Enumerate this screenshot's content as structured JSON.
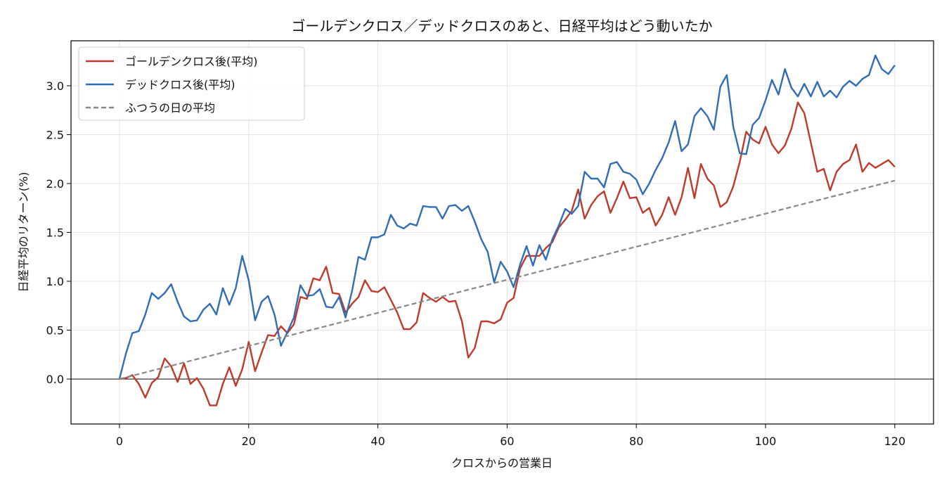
{
  "chart_data": {
    "type": "line",
    "title": "ゴールデンクロス／デッドクロスのあと、日経平均はどう動いたか",
    "xlabel": "クロスからの営業日",
    "ylabel": "日経平均のリターン(%)",
    "xlim": [
      -7.5,
      126
    ],
    "ylim": [
      -0.46,
      3.46
    ],
    "xticks": [
      "0",
      "20",
      "40",
      "60",
      "80",
      "100",
      "120"
    ],
    "yticks": [
      "0.0",
      "0.5",
      "1.0",
      "1.5",
      "2.0",
      "2.5",
      "3.0"
    ],
    "grid": true,
    "legend_position": "top-left",
    "series": [
      {
        "name": "ゴールデンクロス後(平均)",
        "color": "#c0392b",
        "style": "solid",
        "x": [
          0,
          1,
          2,
          3,
          4,
          5,
          6,
          7,
          8,
          9,
          10,
          11,
          12,
          13,
          14,
          15,
          16,
          17,
          18,
          19,
          20,
          21,
          22,
          23,
          24,
          25,
          26,
          27,
          28,
          29,
          30,
          31,
          32,
          33,
          34,
          35,
          36,
          37,
          38,
          39,
          40,
          41,
          42,
          43,
          44,
          45,
          46,
          47,
          48,
          49,
          50,
          51,
          52,
          53,
          54,
          55,
          56,
          57,
          58,
          59,
          60,
          61,
          62,
          63,
          64,
          65,
          66,
          67,
          68,
          69,
          70,
          71,
          72,
          73,
          74,
          75,
          76,
          77,
          78,
          79,
          80,
          81,
          82,
          83,
          84,
          85,
          86,
          87,
          88,
          89,
          90,
          91,
          92,
          93,
          94,
          95,
          96,
          97,
          98,
          99,
          100,
          101,
          102,
          103,
          104,
          105,
          106,
          107,
          108,
          109,
          110,
          111,
          112,
          113,
          114,
          115,
          116,
          117,
          118,
          119,
          120
        ],
        "values": [
          0.0,
          0.01,
          0.04,
          -0.05,
          -0.19,
          -0.04,
          0.02,
          0.21,
          0.13,
          -0.03,
          0.16,
          -0.05,
          0.01,
          -0.1,
          -0.27,
          -0.27,
          -0.05,
          0.12,
          -0.07,
          0.1,
          0.38,
          0.08,
          0.27,
          0.45,
          0.44,
          0.54,
          0.47,
          0.56,
          0.84,
          0.82,
          1.03,
          1.01,
          1.15,
          0.88,
          0.87,
          0.68,
          0.77,
          0.84,
          1.01,
          0.9,
          0.89,
          0.94,
          0.81,
          0.68,
          0.51,
          0.51,
          0.58,
          0.88,
          0.83,
          0.79,
          0.84,
          0.79,
          0.8,
          0.59,
          0.22,
          0.32,
          0.59,
          0.59,
          0.57,
          0.61,
          0.78,
          0.83,
          1.13,
          1.26,
          1.26,
          1.26,
          1.34,
          1.4,
          1.55,
          1.63,
          1.72,
          1.94,
          1.64,
          1.78,
          1.87,
          1.92,
          1.7,
          1.85,
          2.02,
          1.85,
          1.86,
          1.7,
          1.75,
          1.57,
          1.68,
          1.86,
          1.68,
          1.86,
          2.16,
          1.85,
          2.2,
          2.05,
          1.98,
          1.76,
          1.81,
          1.97,
          2.22,
          2.53,
          2.45,
          2.41,
          2.58,
          2.4,
          2.31,
          2.39,
          2.56,
          2.83,
          2.72,
          2.42,
          2.12,
          2.15,
          1.93,
          2.12,
          2.2,
          2.24,
          2.4,
          2.12,
          2.21,
          2.16,
          2.2,
          2.24,
          2.17
        ]
      },
      {
        "name": "デッドクロス後(平均)",
        "color": "#2f6db5",
        "style": "solid",
        "x": [
          0,
          1,
          2,
          3,
          4,
          5,
          6,
          7,
          8,
          9,
          10,
          11,
          12,
          13,
          14,
          15,
          16,
          17,
          18,
          19,
          20,
          21,
          22,
          23,
          24,
          25,
          26,
          27,
          28,
          29,
          30,
          31,
          32,
          33,
          34,
          35,
          36,
          37,
          38,
          39,
          40,
          41,
          42,
          43,
          44,
          45,
          46,
          47,
          48,
          49,
          50,
          51,
          52,
          53,
          54,
          55,
          56,
          57,
          58,
          59,
          60,
          61,
          62,
          63,
          64,
          65,
          66,
          67,
          68,
          69,
          70,
          71,
          72,
          73,
          74,
          75,
          76,
          77,
          78,
          79,
          80,
          81,
          82,
          83,
          84,
          85,
          86,
          87,
          88,
          89,
          90,
          91,
          92,
          93,
          94,
          95,
          96,
          97,
          98,
          99,
          100,
          101,
          102,
          103,
          104,
          105,
          106,
          107,
          108,
          109,
          110,
          111,
          112,
          113,
          114,
          115,
          116,
          117,
          118,
          119,
          120
        ],
        "values": [
          0.0,
          0.26,
          0.47,
          0.49,
          0.66,
          0.88,
          0.82,
          0.88,
          0.97,
          0.79,
          0.64,
          0.59,
          0.6,
          0.71,
          0.77,
          0.66,
          0.93,
          0.76,
          0.93,
          1.26,
          1.01,
          0.6,
          0.79,
          0.85,
          0.66,
          0.34,
          0.48,
          0.63,
          0.96,
          0.85,
          0.86,
          0.92,
          0.74,
          0.73,
          0.84,
          0.63,
          0.9,
          1.25,
          1.22,
          1.45,
          1.45,
          1.48,
          1.68,
          1.57,
          1.54,
          1.59,
          1.57,
          1.77,
          1.76,
          1.76,
          1.64,
          1.77,
          1.78,
          1.72,
          1.77,
          1.61,
          1.43,
          1.3,
          0.99,
          1.2,
          1.1,
          0.94,
          1.17,
          1.36,
          1.16,
          1.37,
          1.22,
          1.43,
          1.57,
          1.74,
          1.69,
          1.77,
          2.12,
          2.05,
          2.05,
          1.96,
          2.2,
          2.22,
          2.12,
          2.1,
          2.04,
          1.89,
          2.0,
          2.14,
          2.26,
          2.42,
          2.64,
          2.33,
          2.4,
          2.69,
          2.77,
          2.69,
          2.55,
          2.99,
          3.11,
          2.58,
          2.31,
          2.3,
          2.6,
          2.67,
          2.85,
          3.06,
          2.91,
          3.17,
          2.98,
          2.89,
          3.02,
          2.89,
          3.04,
          2.89,
          2.95,
          2.88,
          2.99,
          3.05,
          3.0,
          3.07,
          3.11,
          3.31,
          3.17,
          3.12,
          3.21
        ]
      },
      {
        "name": "ふつうの日の平均",
        "color": "#888888",
        "style": "dashed",
        "x": [
          0,
          120
        ],
        "values": [
          0.0,
          2.03
        ]
      }
    ]
  }
}
